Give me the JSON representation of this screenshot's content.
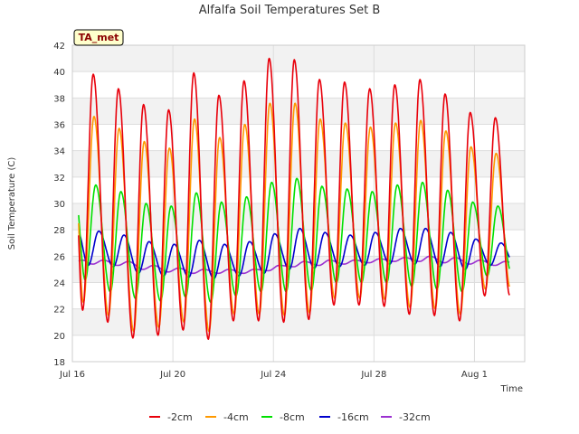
{
  "chart_data": {
    "type": "line",
    "title": "Alfalfa Soil Temperatures Set B",
    "xlabel": "Time",
    "ylabel": "Soil Temperature (C)",
    "badge": "TA_met",
    "ylim": [
      18,
      42
    ],
    "yticks": [
      18,
      20,
      22,
      24,
      26,
      28,
      30,
      32,
      34,
      36,
      38,
      40,
      42
    ],
    "xlim_days": [
      16,
      34
    ],
    "xticks": [
      {
        "day": 16,
        "label": "Jul 16"
      },
      {
        "day": 20,
        "label": "Jul 20"
      },
      {
        "day": 24,
        "label": "Jul 24"
      },
      {
        "day": 28,
        "label": "Jul 28"
      },
      {
        "day": 32,
        "label": "Aug 1"
      }
    ],
    "legend_placement": "bottom-center",
    "grid": true,
    "data_start_day": 16.25,
    "data_end_day": 33.4,
    "peak_days": [
      16.83,
      17.83,
      18.83,
      19.83,
      20.83,
      21.83,
      22.83,
      23.83,
      24.83,
      25.83,
      26.83,
      27.83,
      28.83,
      29.83,
      30.83,
      31.83,
      32.83
    ],
    "series": [
      {
        "name": "-2cm",
        "color": "#e8000b",
        "peak_phase": 0.0,
        "maxima": [
          39.8,
          38.7,
          37.5,
          37.1,
          39.9,
          38.2,
          39.3,
          41.0,
          40.9,
          39.4,
          39.2,
          38.7,
          39.0,
          39.4,
          38.3,
          36.9,
          36.5
        ],
        "minima": [
          21.9,
          21.0,
          19.8,
          20.0,
          20.4,
          19.7,
          21.1,
          21.1,
          21.0,
          21.2,
          22.3,
          22.3,
          22.2,
          21.6,
          21.5,
          21.1,
          23.0
        ]
      },
      {
        "name": "-4cm",
        "color": "#ff9900",
        "peak_phase": 0.03,
        "maxima": [
          36.6,
          35.7,
          34.7,
          34.2,
          36.4,
          35.0,
          36.0,
          37.6,
          37.6,
          36.4,
          36.1,
          35.8,
          36.1,
          36.3,
          35.5,
          34.3,
          33.8
        ],
        "minima": [
          22.5,
          21.5,
          20.3,
          20.6,
          21.0,
          20.3,
          21.6,
          21.6,
          21.5,
          21.7,
          22.8,
          22.8,
          22.7,
          22.1,
          22.0,
          21.6,
          23.5
        ]
      },
      {
        "name": "-8cm",
        "color": "#00e000",
        "peak_phase": 0.1,
        "maxima": [
          31.4,
          30.9,
          30.0,
          29.8,
          30.8,
          30.1,
          30.5,
          31.6,
          31.9,
          31.3,
          31.1,
          30.9,
          31.4,
          31.6,
          31.0,
          30.1,
          29.8
        ],
        "minima": [
          24.2,
          23.3,
          22.8,
          22.6,
          22.9,
          22.5,
          23.0,
          23.3,
          23.3,
          23.4,
          24.0,
          24.0,
          24.0,
          23.7,
          23.5,
          23.3,
          24.5
        ]
      },
      {
        "name": "-16cm",
        "color": "#0000cc",
        "peak_phase": 0.22,
        "maxima": [
          27.9,
          27.6,
          27.1,
          26.9,
          27.2,
          26.9,
          27.1,
          27.7,
          28.1,
          27.8,
          27.6,
          27.8,
          28.1,
          28.1,
          27.8,
          27.3,
          27.0
        ],
        "minima": [
          25.3,
          25.2,
          24.7,
          24.5,
          24.4,
          24.3,
          24.5,
          24.7,
          25.0,
          25.1,
          25.2,
          25.3,
          25.4,
          25.4,
          25.2,
          25.0,
          25.3
        ]
      },
      {
        "name": "-32cm",
        "color": "#9b30d0",
        "peak_phase": 0.4,
        "maxima": [
          25.7,
          25.6,
          25.3,
          25.1,
          25.0,
          25.0,
          25.0,
          25.3,
          25.6,
          25.7,
          25.7,
          25.8,
          25.9,
          26.0,
          25.9,
          25.7,
          25.6
        ],
        "minima": [
          25.4,
          25.3,
          25.0,
          24.8,
          24.7,
          24.7,
          24.7,
          24.9,
          25.2,
          25.3,
          25.4,
          25.5,
          25.6,
          25.6,
          25.5,
          25.4,
          25.3
        ]
      }
    ]
  }
}
